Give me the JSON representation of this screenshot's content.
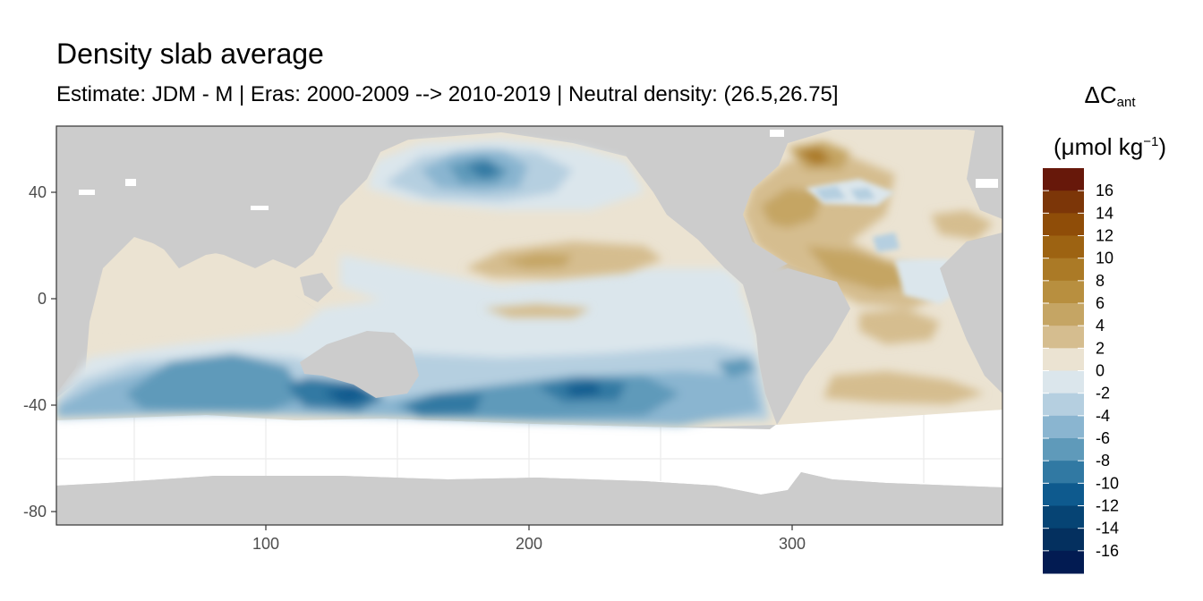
{
  "title": "Density slab average",
  "subtitle": "Estimate: JDM - M | Eras: 2000-2009 --> 2010-2019 | Neutral density: (26.5,26.75]",
  "legend": {
    "symbol": "ΔC",
    "subscript": "ant",
    "unit_prefix": "(μmol kg",
    "unit_power": "−1",
    "unit_suffix": ")",
    "labels": [
      "16",
      "14",
      "12",
      "10",
      "8",
      "6",
      "4",
      "2",
      "0",
      "-2",
      "-4",
      "-6",
      "-8",
      "-10",
      "-12",
      "-14",
      "-16"
    ],
    "colors": [
      "#67180a",
      "#7c3608",
      "#8f4d08",
      "#9d6312",
      "#ab7a26",
      "#b88f3f",
      "#c5a564",
      "#d5bd8f",
      "#ebe3d2",
      "#dbe6ec",
      "#b5cfe0",
      "#8ab5d0",
      "#5f9aba",
      "#3179a3",
      "#0e5a8e",
      "#064474",
      "#04305f",
      "#021b52"
    ]
  },
  "chart_data": {
    "type": "map",
    "x_ticks": [
      "100",
      "200",
      "300"
    ],
    "x_tick_values": [
      100,
      200,
      300
    ],
    "y_ticks": [
      "40",
      "0",
      "-40",
      "-80"
    ],
    "y_tick_values": [
      40,
      0,
      -40,
      -80
    ],
    "xlim": [
      20,
      380
    ],
    "ylim": [
      -85,
      65
    ],
    "grid": true,
    "land_color": "#cccccc",
    "no_data_color": "#ffffff",
    "legend_position": "right"
  }
}
